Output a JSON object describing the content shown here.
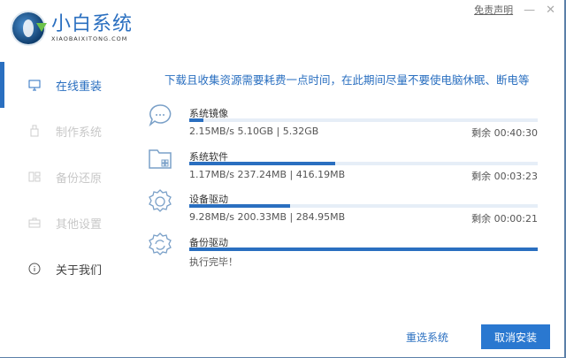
{
  "app": {
    "name_cn": "小白系统",
    "name_en": "XIAOBAIXITONG.COM"
  },
  "top": {
    "disclaimer": "免责声明",
    "minimize": "—",
    "close": "✕"
  },
  "sidebar": {
    "items": [
      {
        "label": "在线重装",
        "icon": "monitor-icon",
        "active": true
      },
      {
        "label": "制作系统",
        "icon": "usb-icon",
        "active": false
      },
      {
        "label": "备份还原",
        "icon": "backup-icon",
        "active": false
      },
      {
        "label": "其他设置",
        "icon": "briefcase-icon",
        "active": false
      },
      {
        "label": "关于我们",
        "icon": "info-icon",
        "active": false
      }
    ]
  },
  "notice": "下载且收集资源需要耗费一点时间，在此期间尽量不要使电脑休眠、断电等",
  "tasks": [
    {
      "name": "系统镜像",
      "icon": "chat-bubble-icon",
      "stats": "2.15MB/s 5.10GB | 5.32GB",
      "remaining": "剩余 00:40:30",
      "progress": 4
    },
    {
      "name": "系统软件",
      "icon": "folder-apps-icon",
      "stats": "1.17MB/s 237.24MB | 416.19MB",
      "remaining": "剩余 00:03:23",
      "progress": 42
    },
    {
      "name": "设备驱动",
      "icon": "gear-icon",
      "stats": "9.28MB/s 200.33MB | 284.95MB",
      "remaining": "剩余 00:00:21",
      "progress": 29
    },
    {
      "name": "备份驱动",
      "icon": "gear-refresh-icon",
      "stats": "执行完毕！",
      "remaining": "",
      "progress": 100
    }
  ],
  "buttons": {
    "reselect": "重选系统",
    "cancel": "取消安装"
  },
  "colors": {
    "accent": "#2a6fc0"
  }
}
